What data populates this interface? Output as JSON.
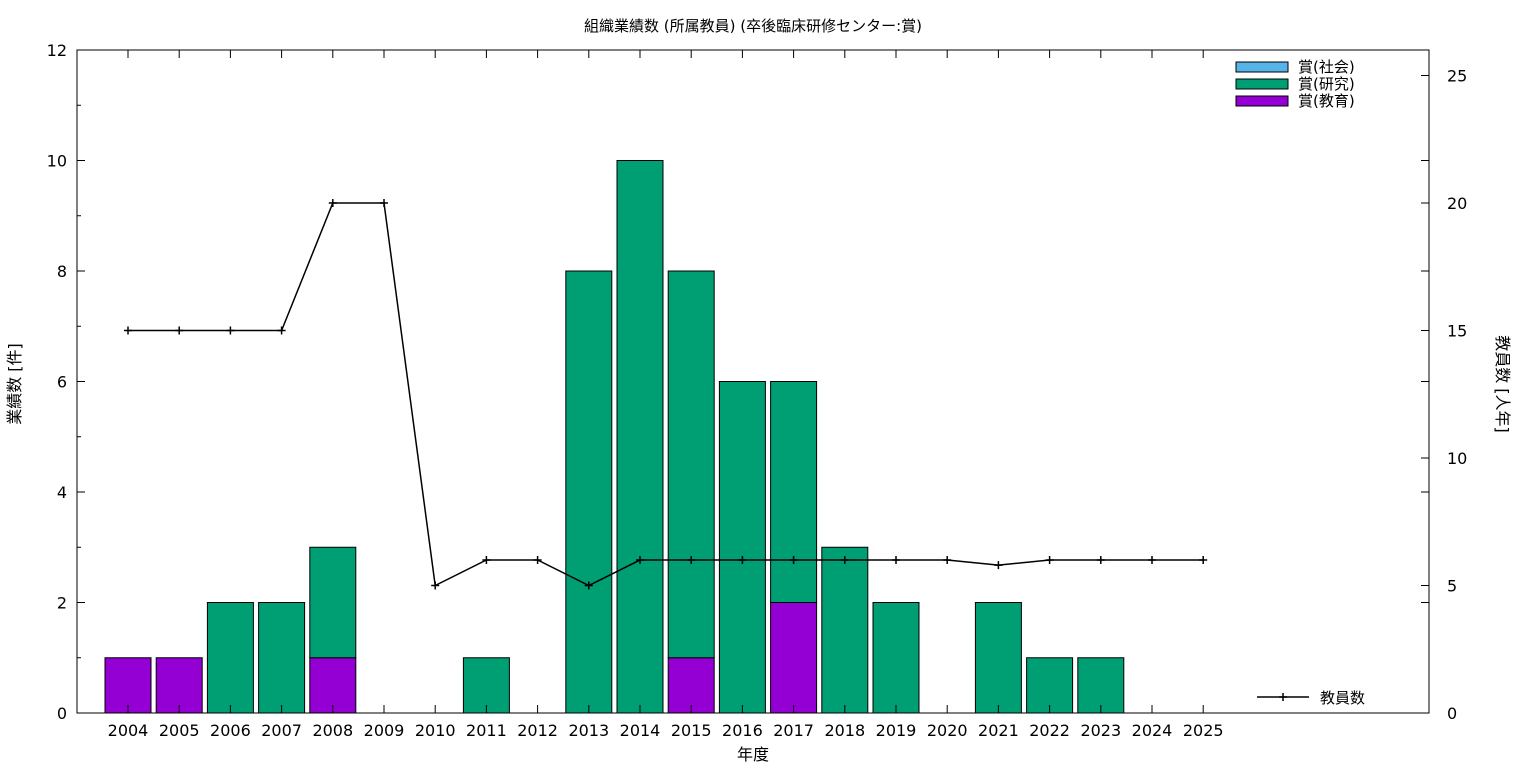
{
  "chart_data": {
    "type": "bar",
    "title": "組織業績数 (所属教員) (卒後臨床研修センター:賞)",
    "xlabel": "年度",
    "ylabel": "業績数 [件]",
    "y2label": "教員数 [人年]",
    "ylim": [
      0,
      12
    ],
    "y2lim": [
      0,
      26
    ],
    "yticks": [
      "0",
      "2",
      "4",
      "6",
      "8",
      "10",
      "12"
    ],
    "y2ticks": [
      "0",
      "5",
      "10",
      "15",
      "20",
      "25"
    ],
    "categories": [
      "2004",
      "2005",
      "2006",
      "2007",
      "2008",
      "2009",
      "2010",
      "2011",
      "2012",
      "2013",
      "2014",
      "2015",
      "2016",
      "2017",
      "2018",
      "2019",
      "2020",
      "2021",
      "2022",
      "2023",
      "2024",
      "2025"
    ],
    "stacked": true,
    "series": [
      {
        "name": "賞(教育)",
        "color": "#9400d3",
        "values": [
          1,
          1,
          0,
          0,
          1,
          0,
          0,
          0,
          0,
          0,
          0,
          1,
          0,
          2,
          0,
          0,
          0,
          0,
          0,
          0,
          0,
          0
        ]
      },
      {
        "name": "賞(研究)",
        "color": "#009e73",
        "values": [
          0,
          0,
          2,
          2,
          2,
          0,
          0,
          1,
          0,
          8,
          10,
          7,
          6,
          4,
          3,
          2,
          0,
          2,
          1,
          1,
          0,
          0
        ]
      },
      {
        "name": "賞(社会)",
        "color": "#56b4e9",
        "values": [
          0,
          0,
          0,
          0,
          0,
          0,
          0,
          0,
          0,
          0,
          0,
          0,
          0,
          0,
          0,
          0,
          0,
          0,
          0,
          0,
          0,
          0
        ]
      }
    ],
    "legend_order": [
      "賞(社会)",
      "賞(研究)",
      "賞(教育)"
    ],
    "legend_position": "top-right",
    "line_series": {
      "name": "教員数",
      "axis": "right",
      "color": "#000000",
      "values": [
        15,
        15,
        15,
        15,
        20,
        20,
        5,
        6,
        6,
        5,
        6,
        6,
        6,
        6,
        6,
        6,
        6,
        5.8,
        6,
        6,
        6,
        6
      ]
    },
    "line_legend_position": "bottom-right",
    "grid": false
  }
}
